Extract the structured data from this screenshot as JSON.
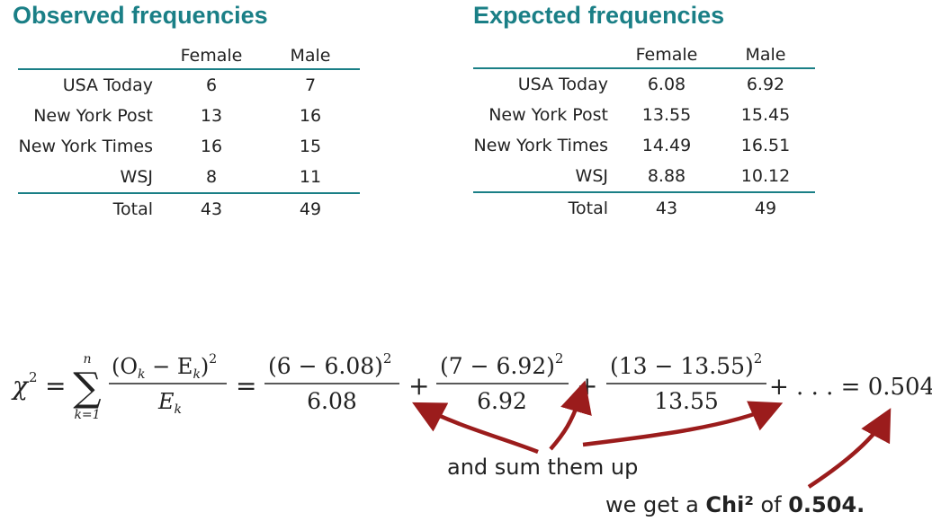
{
  "observed": {
    "title": "Observed frequencies",
    "columns": [
      "Female",
      "Male"
    ],
    "rows": [
      {
        "label": "USA Today",
        "female": "6",
        "male": "7"
      },
      {
        "label": "New York Post",
        "female": "13",
        "male": "16"
      },
      {
        "label": "New York Times",
        "female": "16",
        "male": "15"
      },
      {
        "label": "WSJ",
        "female": "8",
        "male": "11"
      }
    ],
    "total": {
      "label": "Total",
      "female": "43",
      "male": "49"
    }
  },
  "expected": {
    "title": "Expected frequencies",
    "columns": [
      "Female",
      "Male"
    ],
    "rows": [
      {
        "label": "USA Today",
        "female": "6.08",
        "male": "6.92"
      },
      {
        "label": "New York Post",
        "female": "13.55",
        "male": "15.45"
      },
      {
        "label": "New York Times",
        "female": "14.49",
        "male": "16.51"
      },
      {
        "label": "WSJ",
        "female": "8.88",
        "male": "10.12"
      }
    ],
    "total": {
      "label": "Total",
      "female": "43",
      "male": "49"
    }
  },
  "formula": {
    "chi": "χ",
    "two": "2",
    "equals": "=",
    "sigma": "∑",
    "sum_upper": "n",
    "sum_lower": "k=1",
    "general_num": "(O",
    "general_num_sub_o": "k",
    "general_minus": "− E",
    "general_num_sub_e": "k",
    "general_close": ")",
    "general_den": "E",
    "general_den_sub": "k",
    "term1_num": "(6 − 6.08)",
    "term1_den": "6.08",
    "term2_num": "(7 − 6.92)",
    "term2_den": "6.92",
    "term3_num": "(13 − 13.55)",
    "term3_den": "13.55",
    "plus": "+",
    "tail": "+ . . . = 0.504"
  },
  "annotations": {
    "sum_text": "and sum them up",
    "chi_prefix": "we get a ",
    "chi_word": "Chi²",
    "chi_mid": " of ",
    "chi_value": "0.504."
  },
  "colors": {
    "heading": "#1a7f86",
    "rule": "#1a7f86",
    "arrow": "#9b1c1c",
    "text": "#222222"
  }
}
